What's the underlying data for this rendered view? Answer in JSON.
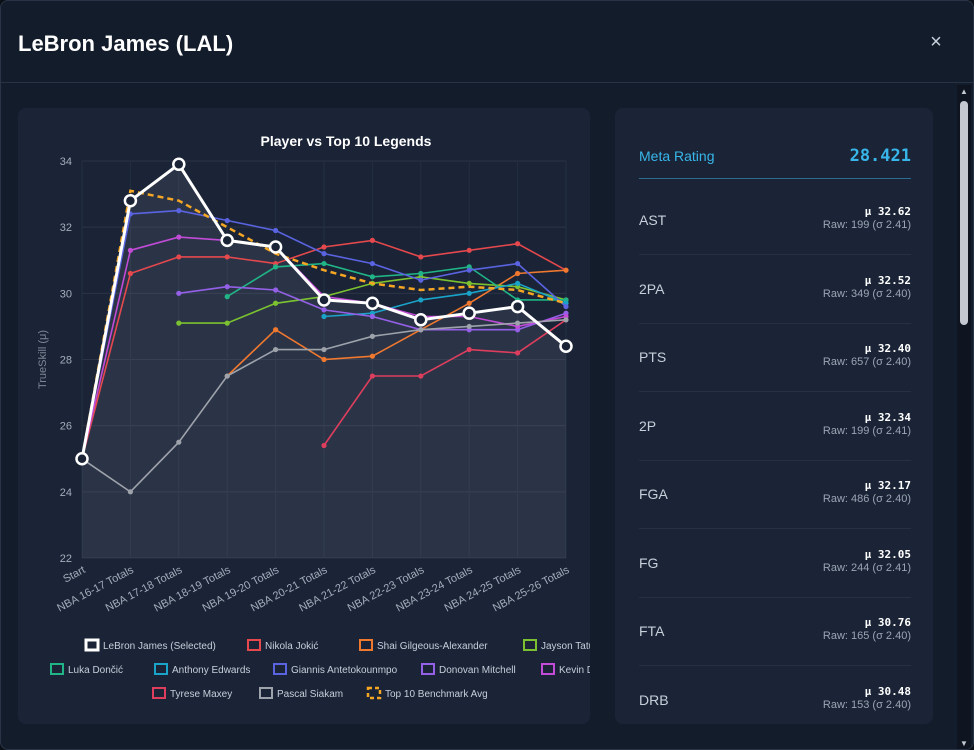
{
  "modal": {
    "title": "LeBron James (LAL)",
    "close_label": "×"
  },
  "colors": {
    "accent": "#38b6ea",
    "background": "#131c2b",
    "card": "#1a2436"
  },
  "side_panel": {
    "meta_label": "Meta Rating",
    "meta_value": "28.421",
    "stats": [
      {
        "label": "AST",
        "mu": "μ 32.62",
        "raw": "Raw: 199 (σ 2.41)"
      },
      {
        "label": "2PA",
        "mu": "μ 32.52",
        "raw": "Raw: 349 (σ 2.40)"
      },
      {
        "label": "PTS",
        "mu": "μ 32.40",
        "raw": "Raw: 657 (σ 2.40)"
      },
      {
        "label": "2P",
        "mu": "μ 32.34",
        "raw": "Raw: 199 (σ 2.41)"
      },
      {
        "label": "FGA",
        "mu": "μ 32.17",
        "raw": "Raw: 486 (σ 2.40)"
      },
      {
        "label": "FG",
        "mu": "μ 32.05",
        "raw": "Raw: 244 (σ 2.41)"
      },
      {
        "label": "FTA",
        "mu": "μ 30.76",
        "raw": "Raw: 165 (σ 2.40)"
      },
      {
        "label": "DRB",
        "mu": "μ 30.48",
        "raw": "Raw: 153 (σ 2.40)"
      }
    ]
  },
  "chart_data": {
    "type": "line",
    "title": "Player vs Top 10 Legends",
    "xlabel": "",
    "ylabel": "TrueSkill (μ)",
    "ylim": [
      22,
      34
    ],
    "yticks": [
      22,
      24,
      26,
      28,
      30,
      32,
      34
    ],
    "grid": true,
    "legend_position": "bottom",
    "categories": [
      "Start",
      "NBA 16-17 Totals",
      "NBA 17-18 Totals",
      "NBA 18-19 Totals",
      "NBA 19-20 Totals",
      "NBA 20-21 Totals",
      "NBA 21-22 Totals",
      "NBA 22-23 Totals",
      "NBA 23-24 Totals",
      "NBA 24-25 Totals",
      "NBA 25-26 Totals"
    ],
    "series": [
      {
        "name": "Nikola Jokić",
        "color": "#e5484d",
        "values": [
          25.0,
          30.6,
          31.1,
          31.1,
          30.9,
          31.4,
          31.6,
          31.1,
          31.3,
          31.5,
          30.7
        ]
      },
      {
        "name": "Shai Gilgeous-Alexander",
        "color": "#f0782f",
        "values": [
          null,
          null,
          null,
          27.5,
          28.9,
          28.0,
          28.1,
          28.9,
          29.7,
          30.6,
          30.7
        ]
      },
      {
        "name": "Jayson Tatum",
        "color": "#7cc230",
        "values": [
          null,
          null,
          29.1,
          29.1,
          29.7,
          29.9,
          30.3,
          30.5,
          30.3,
          30.2,
          29.8
        ]
      },
      {
        "name": "Luka Dončić",
        "color": "#20b486",
        "values": [
          null,
          null,
          null,
          29.9,
          30.8,
          30.9,
          30.5,
          30.6,
          30.8,
          29.8,
          29.8
        ]
      },
      {
        "name": "Anthony Edwards",
        "color": "#1aa3c9",
        "values": [
          null,
          null,
          null,
          null,
          null,
          29.3,
          29.4,
          29.8,
          30.0,
          30.3,
          29.7
        ]
      },
      {
        "name": "Giannis Antetokounmpo",
        "color": "#5a63e0",
        "values": [
          25.0,
          32.4,
          32.5,
          32.2,
          31.9,
          31.2,
          30.9,
          30.4,
          30.7,
          30.9,
          29.6
        ]
      },
      {
        "name": "Donovan Mitchell",
        "color": "#9560e8",
        "values": [
          null,
          null,
          30.0,
          30.2,
          30.1,
          29.5,
          29.3,
          28.9,
          28.9,
          28.9,
          29.4
        ]
      },
      {
        "name": "Kevin Durant",
        "color": "#c24bd8",
        "values": [
          25.0,
          31.3,
          31.7,
          31.6,
          31.4,
          29.9,
          29.7,
          29.3,
          29.3,
          29.0,
          29.3
        ]
      },
      {
        "name": "Tyrese Maxey",
        "color": "#de3e5d",
        "values": [
          null,
          null,
          null,
          null,
          null,
          25.4,
          27.5,
          27.5,
          28.3,
          28.2,
          29.2
        ]
      },
      {
        "name": "Pascal Siakam",
        "color": "#9ea3ab",
        "values": [
          25.0,
          24.0,
          25.5,
          27.5,
          28.3,
          28.3,
          28.7,
          28.9,
          29.0,
          29.1,
          29.2
        ]
      },
      {
        "name": "Top 10 Benchmark Avg",
        "color": "#f5a623",
        "dashed": true,
        "values": [
          25.0,
          33.1,
          32.8,
          32.0,
          31.2,
          30.7,
          30.3,
          30.1,
          30.2,
          30.1,
          29.7
        ]
      },
      {
        "name": "LeBron James (Selected)",
        "color": "#ffffff",
        "selected": true,
        "values": [
          25.0,
          32.8,
          33.9,
          31.6,
          31.4,
          29.8,
          29.7,
          29.2,
          29.4,
          29.6,
          28.4
        ]
      }
    ],
    "legend_order": [
      "LeBron James (Selected)",
      "Nikola Jokić",
      "Shai Gilgeous-Alexander",
      "Jayson Tatum",
      "Luka Dončić",
      "Anthony Edwards",
      "Giannis Antetokounmpo",
      "Donovan Mitchell",
      "Kevin Durant",
      "Tyrese Maxey",
      "Pascal Siakam",
      "Top 10 Benchmark Avg"
    ]
  }
}
